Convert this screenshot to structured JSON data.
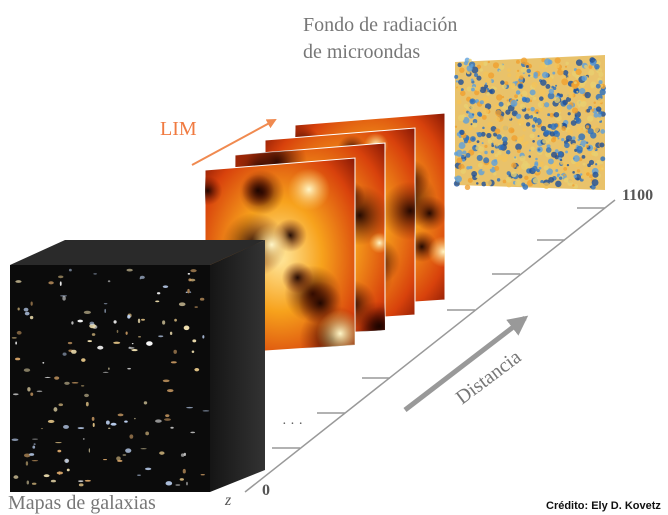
{
  "cmb_title": [
    "Fondo de radiación",
    "de microondas"
  ],
  "lim_label": "LIM",
  "axis": {
    "top": "1100",
    "bottom": "0",
    "variable": "z",
    "direction": "Distancia",
    "ellipsis": "· · ·"
  },
  "galaxies_label": "Mapas de galaxias",
  "credit": "Crédito: Ely D. Kovetz"
}
